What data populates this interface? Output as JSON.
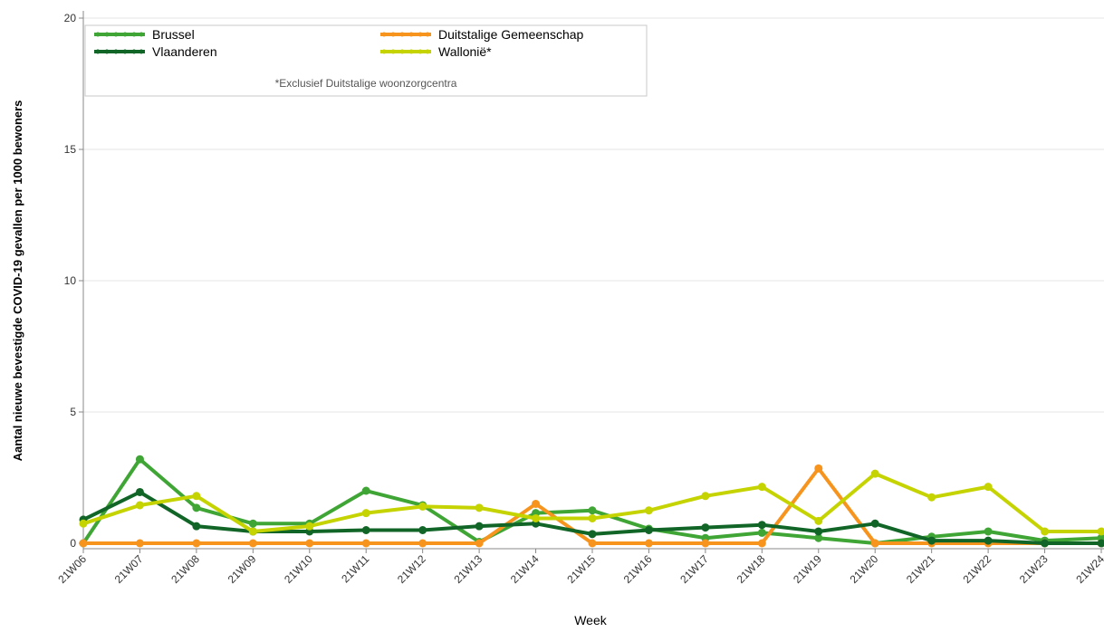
{
  "chart_data": {
    "type": "line",
    "xlabel": "Week",
    "ylabel": "Aantal nieuwe bevestigde COVID-19 gevallen per 1000 bewoners",
    "ylim": [
      0,
      20
    ],
    "yticks": [
      0,
      5,
      10,
      15,
      20
    ],
    "grid": true,
    "legend_position": "top-left",
    "legend_note": "*Exclusief Duitstalige woonzorgcentra",
    "categories": [
      "21W06",
      "21W07",
      "21W08",
      "21W09",
      "21W10",
      "21W11",
      "21W12",
      "21W13",
      "21W14",
      "21W15",
      "21W16",
      "21W17",
      "21W18",
      "21W19",
      "21W20",
      "21W21",
      "21W22",
      "21W23",
      "21W24"
    ],
    "series": [
      {
        "name": "Brussel",
        "color": "#3fa535",
        "values": [
          0,
          3.2,
          1.35,
          0.75,
          0.75,
          2.0,
          1.45,
          0.05,
          1.15,
          1.25,
          0.55,
          0.2,
          0.4,
          0.2,
          0.0,
          0.25,
          0.45,
          0.1,
          0.2
        ]
      },
      {
        "name": "Duitstalige Gemeenschap",
        "color": "#f7941d",
        "values": [
          0,
          0,
          0,
          0,
          0,
          0,
          0,
          0,
          1.5,
          0,
          0,
          0,
          0,
          2.85,
          0,
          0,
          0,
          0,
          0
        ]
      },
      {
        "name": "Vlaanderen",
        "color": "#116627",
        "values": [
          0.9,
          1.95,
          0.65,
          0.45,
          0.45,
          0.5,
          0.5,
          0.65,
          0.75,
          0.35,
          0.5,
          0.6,
          0.7,
          0.45,
          0.75,
          0.1,
          0.1,
          0.0,
          0.0
        ]
      },
      {
        "name": "Wallonië*",
        "color": "#c5d300",
        "values": [
          0.75,
          1.45,
          1.8,
          0.45,
          0.65,
          1.15,
          1.4,
          1.35,
          0.95,
          0.95,
          1.25,
          1.8,
          2.15,
          0.85,
          2.65,
          1.75,
          2.15,
          0.45,
          0.45
        ]
      }
    ]
  }
}
